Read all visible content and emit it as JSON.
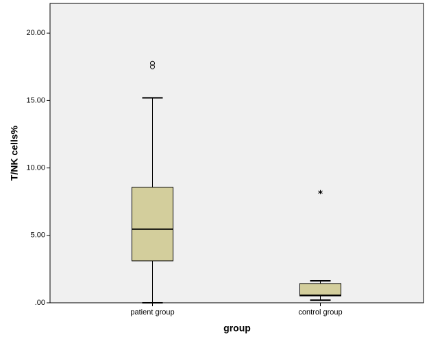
{
  "chart_data": {
    "type": "box",
    "x_label": "group",
    "y_label": "T/NK cells%",
    "categories": [
      "patient group",
      "control group"
    ],
    "color": "#d3ce9c",
    "background": "#f0f0f0",
    "ylim": [
      0,
      22.2
    ],
    "yticks": [
      {
        "value": 0,
        "label": ".00"
      },
      {
        "value": 5,
        "label": "5.00"
      },
      {
        "value": 10,
        "label": "10.00"
      },
      {
        "value": 15,
        "label": "15.00"
      },
      {
        "value": 20,
        "label": "20.00"
      }
    ],
    "boxes": [
      {
        "min": 0,
        "q1": 3.11,
        "median": 5.46,
        "q3": 8.57,
        "max": 15.2,
        "outliers": [
          17.76,
          17.5
        ],
        "extremes": []
      },
      {
        "min": 0.2,
        "q1": 0.51,
        "median": 0.56,
        "q3": 1.43,
        "max": 1.63,
        "outliers": [],
        "extremes": [
          8.21
        ]
      }
    ]
  }
}
